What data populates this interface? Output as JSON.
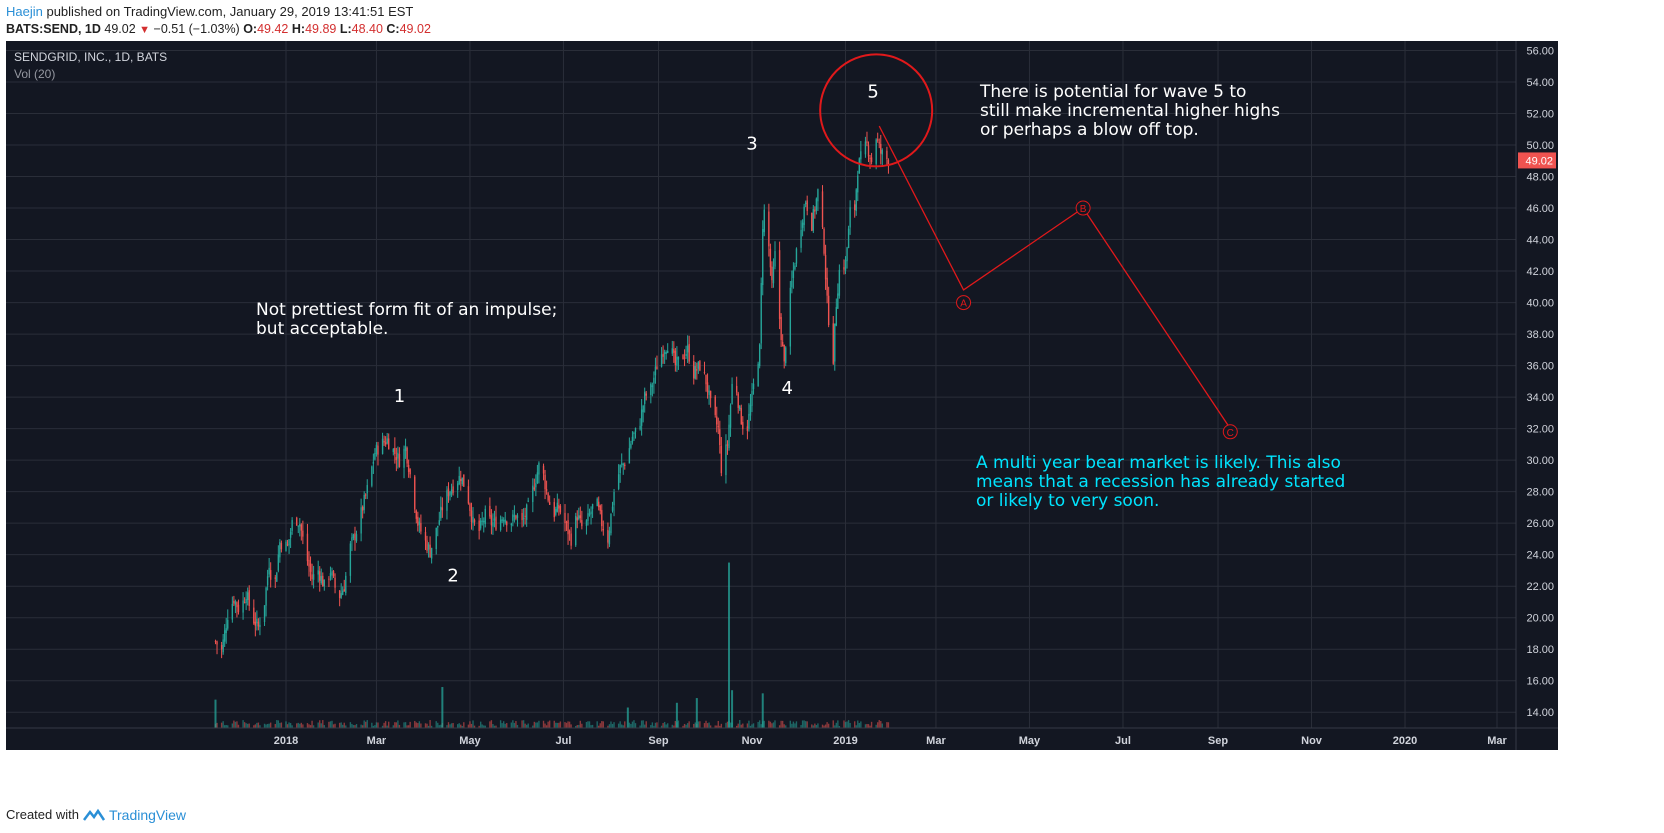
{
  "header": {
    "author": "Haejin",
    "published_text": " published on TradingView.com, January 29, 2019 13:41:51 EST",
    "symbol_label": "BATS:SEND, 1D",
    "last_price": "49.02",
    "change_arrow": "▼",
    "change_text": "−0.51 (−1.03%)",
    "o_label": "O:",
    "o_value": "49.42",
    "h_label": "H:",
    "h_value": "49.89",
    "l_label": "L:",
    "l_value": "48.40",
    "c_label": "C:",
    "c_value": "49.02"
  },
  "footer": {
    "created_with": "Created with",
    "brand": "TradingView"
  },
  "colors": {
    "background": "#131722",
    "grid": "#2a2e39",
    "axis_text": "#d1d4dc",
    "up": "#26a69a",
    "down": "#ef5350",
    "annotation_red": "#e0191b",
    "cyan_text": "#00e5ff",
    "white_text": "#ffffff",
    "price_badge": "#ef5350"
  },
  "chart_data": {
    "type": "candlestick",
    "title": "SENDGRID, INC., 1D, BATS",
    "subtitle": "Vol (20)",
    "y_ticks": [
      "56.00",
      "54.00",
      "52.00",
      "50.00",
      "48.00",
      "46.00",
      "44.00",
      "42.00",
      "40.00",
      "38.00",
      "36.00",
      "34.00",
      "32.00",
      "30.00",
      "28.00",
      "26.00",
      "24.00",
      "22.00",
      "20.00",
      "18.00",
      "16.00",
      "14.00"
    ],
    "ylim": [
      13.0,
      56.6
    ],
    "x_ticks": [
      "2018",
      "Mar",
      "May",
      "Jul",
      "Sep",
      "Nov",
      "2019",
      "Mar",
      "May",
      "Jul",
      "Sep",
      "Nov",
      "2020",
      "Mar"
    ],
    "x_tick_dates": [
      "2018-01-01",
      "2018-03-01",
      "2018-05-01",
      "2018-07-01",
      "2018-09-01",
      "2018-11-01",
      "2019-01-01",
      "2019-03-01",
      "2019-05-01",
      "2019-07-01",
      "2019-09-01",
      "2019-11-01",
      "2020-01-01",
      "2020-03-01"
    ],
    "current_price": "49.02",
    "price_path": [
      [
        "2017-11-16",
        18.5
      ],
      [
        "2017-11-20",
        17.9
      ],
      [
        "2017-11-24",
        20.2
      ],
      [
        "2017-11-28",
        21.2
      ],
      [
        "2017-12-02",
        20.4
      ],
      [
        "2017-12-06",
        21.6
      ],
      [
        "2017-12-10",
        20.0
      ],
      [
        "2017-12-14",
        19.4
      ],
      [
        "2017-12-18",
        21.0
      ],
      [
        "2017-12-21",
        23.5
      ],
      [
        "2017-12-24",
        21.5
      ],
      [
        "2017-12-28",
        24.8
      ],
      [
        "2018-01-02",
        24.5
      ],
      [
        "2018-01-06",
        26.5
      ],
      [
        "2018-01-10",
        26.0
      ],
      [
        "2018-01-14",
        24.0
      ],
      [
        "2018-01-18",
        22.5
      ],
      [
        "2018-01-22",
        23.0
      ],
      [
        "2018-01-26",
        22.0
      ],
      [
        "2018-01-30",
        23.0
      ],
      [
        "2018-02-04",
        21.2
      ],
      [
        "2018-02-08",
        22.0
      ],
      [
        "2018-02-12",
        24.5
      ],
      [
        "2018-02-16",
        25.5
      ],
      [
        "2018-02-20",
        27.0
      ],
      [
        "2018-02-24",
        28.5
      ],
      [
        "2018-02-28",
        30.5
      ],
      [
        "2018-03-04",
        31.0
      ],
      [
        "2018-03-08",
        31.3
      ],
      [
        "2018-03-12",
        30.6
      ],
      [
        "2018-03-16",
        30.0
      ],
      [
        "2018-03-20",
        30.8
      ],
      [
        "2018-03-24",
        28.5
      ],
      [
        "2018-03-28",
        26.0
      ],
      [
        "2018-04-01",
        25.0
      ],
      [
        "2018-04-05",
        24.2
      ],
      [
        "2018-04-09",
        25.5
      ],
      [
        "2018-04-13",
        27.0
      ],
      [
        "2018-04-17",
        28.0
      ],
      [
        "2018-04-21",
        28.5
      ],
      [
        "2018-04-25",
        29.0
      ],
      [
        "2018-04-29",
        28.0
      ],
      [
        "2018-05-03",
        26.0
      ],
      [
        "2018-05-07",
        25.5
      ],
      [
        "2018-05-11",
        26.5
      ],
      [
        "2018-05-15",
        26.0
      ],
      [
        "2018-05-19",
        26.0
      ],
      [
        "2018-05-23",
        26.5
      ],
      [
        "2018-05-27",
        26.0
      ],
      [
        "2018-05-31",
        26.5
      ],
      [
        "2018-06-04",
        26.0
      ],
      [
        "2018-06-08",
        27.0
      ],
      [
        "2018-06-12",
        28.5
      ],
      [
        "2018-06-16",
        30.0
      ],
      [
        "2018-06-20",
        28.0
      ],
      [
        "2018-06-24",
        26.5
      ],
      [
        "2018-06-28",
        27.0
      ],
      [
        "2018-07-02",
        26.0
      ],
      [
        "2018-07-06",
        25.0
      ],
      [
        "2018-07-10",
        26.5
      ],
      [
        "2018-07-14",
        25.5
      ],
      [
        "2018-07-18",
        26.5
      ],
      [
        "2018-07-22",
        27.5
      ],
      [
        "2018-07-26",
        26.0
      ],
      [
        "2018-07-30",
        25.0
      ],
      [
        "2018-08-03",
        28.0
      ],
      [
        "2018-08-07",
        29.5
      ],
      [
        "2018-08-11",
        30.0
      ],
      [
        "2018-08-15",
        31.5
      ],
      [
        "2018-08-19",
        32.0
      ],
      [
        "2018-08-23",
        34.0
      ],
      [
        "2018-08-27",
        34.5
      ],
      [
        "2018-08-31",
        36.0
      ],
      [
        "2018-09-04",
        37.0
      ],
      [
        "2018-09-08",
        37.5
      ],
      [
        "2018-09-12",
        36.0
      ],
      [
        "2018-09-16",
        36.5
      ],
      [
        "2018-09-20",
        37.0
      ],
      [
        "2018-09-24",
        35.5
      ],
      [
        "2018-09-28",
        36.0
      ],
      [
        "2018-10-02",
        35.0
      ],
      [
        "2018-10-06",
        33.0
      ],
      [
        "2018-10-10",
        32.0
      ],
      [
        "2018-10-12",
        29.5
      ],
      [
        "2018-10-16",
        31.0
      ],
      [
        "2018-10-20",
        36.0
      ],
      [
        "2018-10-24",
        33.0
      ],
      [
        "2018-10-28",
        31.5
      ],
      [
        "2018-11-01",
        34.0
      ],
      [
        "2018-11-04",
        36.0
      ],
      [
        "2018-11-06",
        37.0
      ],
      [
        "2018-11-08",
        45.0
      ],
      [
        "2018-11-10",
        46.5
      ],
      [
        "2018-11-12",
        43.5
      ],
      [
        "2018-11-14",
        41.0
      ],
      [
        "2018-11-16",
        43.0
      ],
      [
        "2018-11-18",
        40.0
      ],
      [
        "2018-11-20",
        38.0
      ],
      [
        "2018-11-22",
        36.0
      ],
      [
        "2018-11-24",
        39.0
      ],
      [
        "2018-11-28",
        42.0
      ],
      [
        "2018-12-02",
        44.5
      ],
      [
        "2018-12-06",
        46.5
      ],
      [
        "2018-12-10",
        45.0
      ],
      [
        "2018-12-14",
        47.0
      ],
      [
        "2018-12-18",
        43.5
      ],
      [
        "2018-12-20",
        40.0
      ],
      [
        "2018-12-22",
        38.0
      ],
      [
        "2018-12-24",
        36.5
      ],
      [
        "2018-12-26",
        40.0
      ],
      [
        "2018-12-28",
        42.0
      ],
      [
        "2019-01-01",
        42.5
      ],
      [
        "2019-01-03",
        44.5
      ],
      [
        "2019-01-05",
        47.0
      ],
      [
        "2019-01-07",
        46.0
      ],
      [
        "2019-01-09",
        48.5
      ],
      [
        "2019-01-12",
        49.5
      ],
      [
        "2019-01-15",
        50.0
      ],
      [
        "2019-01-18",
        49.0
      ],
      [
        "2019-01-21",
        50.5
      ],
      [
        "2019-01-24",
        49.5
      ],
      [
        "2019-01-29",
        49.02
      ]
    ],
    "volume_spikes": [
      [
        "2017-11-16",
        14.8
      ],
      [
        "2018-04-13",
        15.6
      ],
      [
        "2018-08-12",
        14.3
      ],
      [
        "2018-09-13",
        14.6
      ],
      [
        "2018-09-26",
        14.9
      ],
      [
        "2018-10-17",
        23.5
      ],
      [
        "2018-10-19",
        15.4
      ],
      [
        "2018-11-08",
        15.2
      ]
    ],
    "wave_labels": [
      {
        "text": "1",
        "date": "2018-03-16",
        "price": 33.7
      },
      {
        "text": "2",
        "date": "2018-04-20",
        "price": 22.3
      },
      {
        "text": "3",
        "date": "2018-11-01",
        "price": 49.7
      },
      {
        "text": "4",
        "date": "2018-11-24",
        "price": 34.2
      },
      {
        "text": "5",
        "date": "2019-01-19",
        "price": 53.0
      }
    ],
    "projection_path": [
      [
        "2019-01-23",
        51.2
      ],
      [
        "2019-03-19",
        40.8
      ],
      [
        "2019-06-05",
        46.0
      ],
      [
        "2019-09-09",
        32.0
      ]
    ],
    "projection_labels": [
      {
        "text": "A",
        "date": "2019-03-19",
        "price": 40.0
      },
      {
        "text": "B",
        "date": "2019-06-05",
        "price": 46.0
      },
      {
        "text": "C",
        "date": "2019-09-09",
        "price": 31.8
      }
    ],
    "highlight_circle": {
      "date": "2019-01-21",
      "price": 52.2
    }
  },
  "annotations": {
    "impulse_note": [
      "Not prettiest form fit of an impulse;",
      "but acceptable."
    ],
    "wave5_note": [
      "There is potential for wave 5 to",
      "still make incremental higher highs",
      "or perhaps a blow off top."
    ],
    "bear_note": [
      "A multi year bear market is likely. This also",
      "means that a recession has already started",
      "or likely to very soon."
    ]
  }
}
